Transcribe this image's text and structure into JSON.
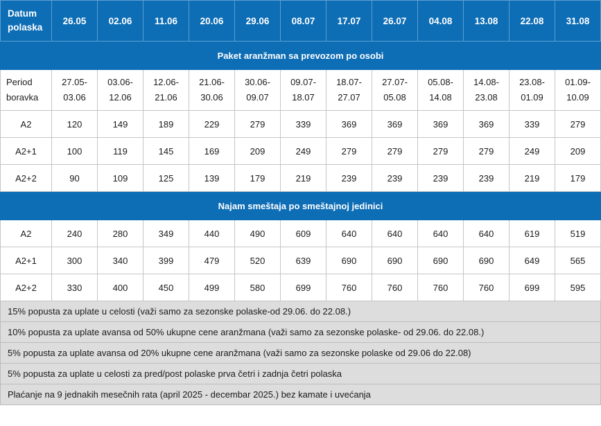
{
  "header": {
    "label": "Datum polaska",
    "dates": [
      "26.05",
      "02.06",
      "11.06",
      "20.06",
      "29.06",
      "08.07",
      "17.07",
      "26.07",
      "04.08",
      "13.08",
      "22.08",
      "31.08"
    ]
  },
  "section1": {
    "title": "Paket aranžman sa prevozom po osobi",
    "period_label": "Period boravka",
    "periods": [
      [
        "27.05-",
        "03.06"
      ],
      [
        "03.06-",
        "12.06"
      ],
      [
        "12.06-",
        "21.06"
      ],
      [
        "21.06-",
        "30.06"
      ],
      [
        "30.06-",
        "09.07"
      ],
      [
        "09.07-",
        "18.07"
      ],
      [
        "18.07-",
        "27.07"
      ],
      [
        "27.07-",
        "05.08"
      ],
      [
        "05.08-",
        "14.08"
      ],
      [
        "14.08-",
        "23.08"
      ],
      [
        "23.08-",
        "01.09"
      ],
      [
        "01.09-",
        "10.09"
      ]
    ],
    "rows": [
      {
        "label": "A2",
        "values": [
          "120",
          "149",
          "189",
          "229",
          "279",
          "339",
          "369",
          "369",
          "369",
          "369",
          "339",
          "279"
        ]
      },
      {
        "label": "A2+1",
        "values": [
          "100",
          "119",
          "145",
          "169",
          "209",
          "249",
          "279",
          "279",
          "279",
          "279",
          "249",
          "209"
        ]
      },
      {
        "label": "A2+2",
        "values": [
          "90",
          "109",
          "125",
          "139",
          "179",
          "219",
          "239",
          "239",
          "239",
          "239",
          "219",
          "179"
        ]
      }
    ]
  },
  "section2": {
    "title": "Najam smeštaja po smeštajnoj jedinici",
    "rows": [
      {
        "label": "A2",
        "values": [
          "240",
          "280",
          "349",
          "440",
          "490",
          "609",
          "640",
          "640",
          "640",
          "640",
          "619",
          "519"
        ]
      },
      {
        "label": "A2+1",
        "values": [
          "300",
          "340",
          "399",
          "479",
          "520",
          "639",
          "690",
          "690",
          "690",
          "690",
          "649",
          "565"
        ]
      },
      {
        "label": "A2+2",
        "values": [
          "330",
          "400",
          "450",
          "499",
          "580",
          "699",
          "760",
          "760",
          "760",
          "760",
          "699",
          "595"
        ]
      }
    ]
  },
  "notes": [
    "15% popusta za uplate u celosti (važi samo za sezonske polaske-od 29.06. do 22.08.)",
    "10% popusta za uplate avansa od 50% ukupne cene aranžmana (važi samo za sezonske polaske- od 29.06. do 22.08.)",
    "5% popusta za uplate avansa od 20% ukupne cene aranžmana (važi samo za sezonske polaske od 29.06 do 22.08)",
    "5% popusta za uplate u celosti za pred/post polaske prva četri i zadnja četri polaska",
    "Plaćanje na 9 jednakih mesečnih rata (april 2025 - decembar 2025.) bez kamate i uvećanja"
  ]
}
